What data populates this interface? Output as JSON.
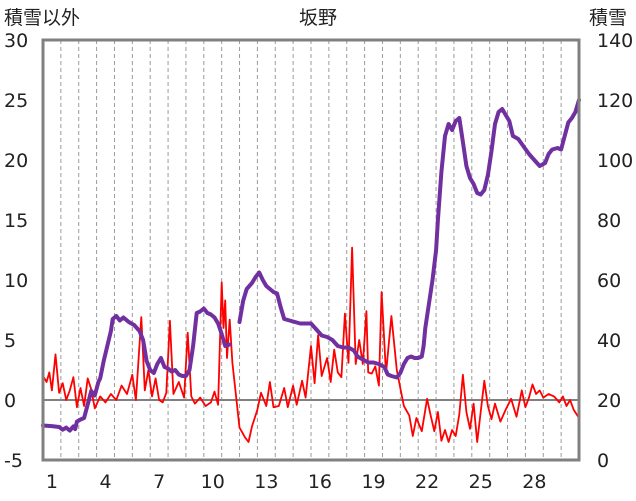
{
  "chart_data": {
    "type": "line",
    "title": "坂野",
    "left_axis_label": "積雪以外",
    "right_axis_label": "積雪",
    "left_axis": {
      "min": -5,
      "max": 30,
      "ticks": [
        -5,
        0,
        5,
        10,
        15,
        20,
        25,
        30
      ]
    },
    "right_axis": {
      "min": 0,
      "max": 140,
      "ticks": [
        0,
        20,
        40,
        60,
        80,
        100,
        120,
        140
      ]
    },
    "x_range": [
      0,
      30
    ],
    "x_ticks": [
      1,
      4,
      7,
      10,
      13,
      16,
      19,
      22,
      25,
      28
    ],
    "grid": "vertical-dashed",
    "series": [
      {
        "axis": "left",
        "color": "#ff0000",
        "points": [
          [
            0.0,
            2.0
          ],
          [
            0.2,
            1.5
          ],
          [
            0.35,
            2.3
          ],
          [
            0.5,
            0.8
          ],
          [
            0.7,
            3.8
          ],
          [
            0.9,
            0.6
          ],
          [
            1.1,
            1.4
          ],
          [
            1.3,
            0.0
          ],
          [
            1.5,
            0.8
          ],
          [
            1.7,
            1.9
          ],
          [
            1.9,
            -0.6
          ],
          [
            2.1,
            1.0
          ],
          [
            2.3,
            -0.5
          ],
          [
            2.5,
            1.8
          ],
          [
            2.7,
            0.9
          ],
          [
            2.9,
            -0.7
          ],
          [
            3.2,
            0.3
          ],
          [
            3.5,
            -0.2
          ],
          [
            3.8,
            0.5
          ],
          [
            4.1,
            0.0
          ],
          [
            4.4,
            1.2
          ],
          [
            4.7,
            0.5
          ],
          [
            5.0,
            2.1
          ],
          [
            5.2,
            0.0
          ],
          [
            5.5,
            6.9
          ],
          [
            5.7,
            0.8
          ],
          [
            5.9,
            2.5
          ],
          [
            6.1,
            0.3
          ],
          [
            6.3,
            1.8
          ],
          [
            6.5,
            0.0
          ],
          [
            6.7,
            -0.2
          ],
          [
            6.9,
            0.6
          ],
          [
            7.1,
            6.6
          ],
          [
            7.3,
            0.5
          ],
          [
            7.6,
            1.5
          ],
          [
            7.9,
            0.2
          ],
          [
            8.1,
            5.6
          ],
          [
            8.3,
            0.3
          ],
          [
            8.5,
            -0.3
          ],
          [
            8.8,
            0.2
          ],
          [
            9.1,
            -0.5
          ],
          [
            9.4,
            -0.2
          ],
          [
            9.6,
            0.7
          ],
          [
            9.8,
            -0.4
          ],
          [
            10.0,
            9.8
          ],
          [
            10.1,
            6.0
          ],
          [
            10.2,
            8.3
          ],
          [
            10.3,
            3.5
          ],
          [
            10.45,
            6.7
          ],
          [
            10.6,
            3.1
          ],
          [
            11.0,
            -2.3
          ],
          [
            11.3,
            -3.1
          ],
          [
            11.5,
            -3.5
          ],
          [
            11.7,
            -2.2
          ],
          [
            12.0,
            -0.8
          ],
          [
            12.2,
            0.6
          ],
          [
            12.5,
            -0.5
          ],
          [
            12.7,
            1.5
          ],
          [
            12.9,
            -0.6
          ],
          [
            13.2,
            -0.5
          ],
          [
            13.5,
            1.0
          ],
          [
            13.7,
            -0.6
          ],
          [
            14.0,
            1.2
          ],
          [
            14.2,
            -0.4
          ],
          [
            14.5,
            1.6
          ],
          [
            14.7,
            0.2
          ],
          [
            15.0,
            4.5
          ],
          [
            15.2,
            1.4
          ],
          [
            15.4,
            5.4
          ],
          [
            15.6,
            2.0
          ],
          [
            15.9,
            3.5
          ],
          [
            16.1,
            1.5
          ],
          [
            16.3,
            4.2
          ],
          [
            16.5,
            2.3
          ],
          [
            16.7,
            1.9
          ],
          [
            16.9,
            7.2
          ],
          [
            17.1,
            3.1
          ],
          [
            17.3,
            12.7
          ],
          [
            17.5,
            3.0
          ],
          [
            17.7,
            5.0
          ],
          [
            17.9,
            3.0
          ],
          [
            18.1,
            7.4
          ],
          [
            18.2,
            2.3
          ],
          [
            18.4,
            2.2
          ],
          [
            18.6,
            2.8
          ],
          [
            18.8,
            1.2
          ],
          [
            18.95,
            9.0
          ],
          [
            19.2,
            2.2
          ],
          [
            19.5,
            7.0
          ],
          [
            19.8,
            2.5
          ],
          [
            20.0,
            1.0
          ],
          [
            20.2,
            -0.5
          ],
          [
            20.5,
            -1.3
          ],
          [
            20.7,
            -3.0
          ],
          [
            20.9,
            -1.5
          ],
          [
            21.2,
            -2.6
          ],
          [
            21.5,
            0.1
          ],
          [
            21.7,
            -1.3
          ],
          [
            21.9,
            -2.6
          ],
          [
            22.1,
            -1.0
          ],
          [
            22.3,
            -3.4
          ],
          [
            22.5,
            -2.5
          ],
          [
            22.7,
            -3.5
          ],
          [
            22.9,
            -2.5
          ],
          [
            23.1,
            -3.0
          ],
          [
            23.3,
            -1.2
          ],
          [
            23.5,
            2.1
          ],
          [
            23.7,
            -1.0
          ],
          [
            23.9,
            -2.4
          ],
          [
            24.1,
            -0.3
          ],
          [
            24.3,
            -3.5
          ],
          [
            24.5,
            -1.0
          ],
          [
            24.7,
            1.6
          ],
          [
            24.9,
            -0.5
          ],
          [
            25.1,
            -1.6
          ],
          [
            25.3,
            -0.3
          ],
          [
            25.6,
            -1.8
          ],
          [
            25.9,
            -0.8
          ],
          [
            26.2,
            0.1
          ],
          [
            26.5,
            -1.4
          ],
          [
            26.8,
            0.8
          ],
          [
            27.0,
            -0.6
          ],
          [
            27.2,
            0.2
          ],
          [
            27.4,
            1.3
          ],
          [
            27.6,
            0.5
          ],
          [
            27.8,
            0.8
          ],
          [
            28.0,
            0.2
          ],
          [
            28.3,
            0.5
          ],
          [
            28.6,
            0.3
          ],
          [
            28.9,
            -0.2
          ],
          [
            29.1,
            0.3
          ],
          [
            29.3,
            -0.5
          ],
          [
            29.5,
            0.0
          ],
          [
            29.7,
            -0.8
          ],
          [
            30.0,
            -1.5
          ]
        ]
      },
      {
        "axis": "right",
        "color": "#7030a0",
        "points": [
          [
            0.0,
            11.5
          ],
          [
            0.5,
            11.3
          ],
          [
            0.9,
            11.0
          ],
          [
            1.1,
            10.1
          ],
          [
            1.3,
            10.8
          ],
          [
            1.5,
            9.8
          ],
          [
            1.7,
            11.2
          ],
          [
            1.8,
            10.3
          ],
          [
            1.9,
            12.8
          ],
          [
            2.1,
            13.5
          ],
          [
            2.3,
            14.0
          ],
          [
            2.5,
            18.5
          ],
          [
            2.7,
            23.0
          ],
          [
            2.9,
            21.5
          ],
          [
            3.1,
            26.0
          ],
          [
            3.2,
            27.2
          ],
          [
            3.4,
            33.0
          ],
          [
            3.6,
            38.0
          ],
          [
            3.8,
            43.0
          ],
          [
            3.9,
            47.0
          ],
          [
            4.1,
            48.0
          ],
          [
            4.3,
            46.5
          ],
          [
            4.5,
            47.5
          ],
          [
            4.8,
            46.0
          ],
          [
            5.1,
            45.0
          ],
          [
            5.4,
            43.0
          ],
          [
            5.6,
            40.0
          ],
          [
            5.8,
            33.0
          ],
          [
            6.0,
            30.0
          ],
          [
            6.2,
            29.0
          ],
          [
            6.4,
            32.0
          ],
          [
            6.6,
            34.0
          ],
          [
            6.8,
            31.0
          ],
          [
            7.0,
            30.5
          ],
          [
            7.2,
            29.5
          ],
          [
            7.4,
            30.0
          ],
          [
            7.6,
            28.5
          ],
          [
            7.8,
            28.0
          ],
          [
            8.0,
            28.0
          ],
          [
            8.2,
            30.0
          ],
          [
            8.4,
            38.0
          ],
          [
            8.6,
            49.0
          ],
          [
            8.8,
            49.5
          ],
          [
            9.0,
            50.5
          ],
          [
            9.2,
            49.0
          ],
          [
            9.4,
            48.5
          ],
          [
            9.6,
            47.5
          ],
          [
            9.8,
            45.5
          ],
          [
            10.0,
            42.0
          ],
          [
            10.2,
            38.0
          ],
          [
            10.45,
            38.5
          ],
          [
            11.0,
            46.0
          ],
          [
            11.2,
            53.0
          ],
          [
            11.4,
            57.0
          ],
          [
            11.7,
            59.0
          ],
          [
            11.9,
            61.0
          ],
          [
            12.1,
            62.5
          ],
          [
            12.3,
            60.0
          ],
          [
            12.5,
            58.0
          ],
          [
            12.7,
            57.0
          ],
          [
            12.9,
            56.0
          ],
          [
            13.1,
            55.5
          ],
          [
            13.3,
            51.0
          ],
          [
            13.5,
            47.0
          ],
          [
            13.8,
            46.5
          ],
          [
            14.1,
            46.0
          ],
          [
            14.4,
            45.5
          ],
          [
            14.7,
            45.5
          ],
          [
            15.0,
            45.5
          ],
          [
            15.3,
            43.5
          ],
          [
            15.6,
            41.5
          ],
          [
            15.9,
            41.0
          ],
          [
            16.2,
            40.0
          ],
          [
            16.5,
            38.0
          ],
          [
            16.8,
            37.5
          ],
          [
            17.1,
            37.5
          ],
          [
            17.4,
            36.5
          ],
          [
            17.6,
            34.5
          ],
          [
            17.9,
            33.5
          ],
          [
            18.2,
            32.5
          ],
          [
            18.5,
            32.5
          ],
          [
            18.8,
            32.0
          ],
          [
            19.1,
            31.0
          ],
          [
            19.3,
            28.5
          ],
          [
            19.5,
            28.0
          ],
          [
            19.8,
            27.5
          ],
          [
            20.0,
            29.0
          ],
          [
            20.2,
            32.0
          ],
          [
            20.4,
            34.0
          ],
          [
            20.6,
            34.5
          ],
          [
            20.8,
            34.0
          ],
          [
            21.0,
            34.0
          ],
          [
            21.2,
            34.5
          ],
          [
            21.3,
            38.0
          ],
          [
            21.4,
            44.0
          ],
          [
            21.6,
            52.0
          ],
          [
            21.8,
            60.0
          ],
          [
            22.0,
            70.0
          ],
          [
            22.1,
            80.0
          ],
          [
            22.3,
            96.0
          ],
          [
            22.5,
            108.0
          ],
          [
            22.7,
            112.0
          ],
          [
            22.9,
            110.0
          ],
          [
            23.1,
            113.0
          ],
          [
            23.3,
            114.0
          ],
          [
            23.5,
            106.0
          ],
          [
            23.7,
            98.0
          ],
          [
            23.9,
            94.0
          ],
          [
            24.1,
            92.0
          ],
          [
            24.3,
            89.0
          ],
          [
            24.5,
            88.5
          ],
          [
            24.7,
            90.0
          ],
          [
            24.9,
            95.0
          ],
          [
            25.1,
            103.0
          ],
          [
            25.3,
            112.0
          ],
          [
            25.5,
            116.0
          ],
          [
            25.7,
            117.0
          ],
          [
            25.9,
            115.0
          ],
          [
            26.1,
            113.0
          ],
          [
            26.3,
            108.0
          ],
          [
            26.6,
            107.0
          ],
          [
            26.9,
            104.5
          ],
          [
            27.2,
            102.0
          ],
          [
            27.5,
            100.0
          ],
          [
            27.8,
            98.0
          ],
          [
            28.1,
            99.0
          ],
          [
            28.3,
            102.0
          ],
          [
            28.5,
            103.5
          ],
          [
            28.8,
            104.0
          ],
          [
            29.0,
            103.5
          ],
          [
            29.2,
            108.0
          ],
          [
            29.4,
            112.5
          ],
          [
            29.6,
            114.0
          ],
          [
            29.8,
            116.0
          ],
          [
            30.0,
            120.0
          ]
        ],
        "gaps": [
          [
            10.45,
            11.0
          ]
        ]
      }
    ]
  }
}
